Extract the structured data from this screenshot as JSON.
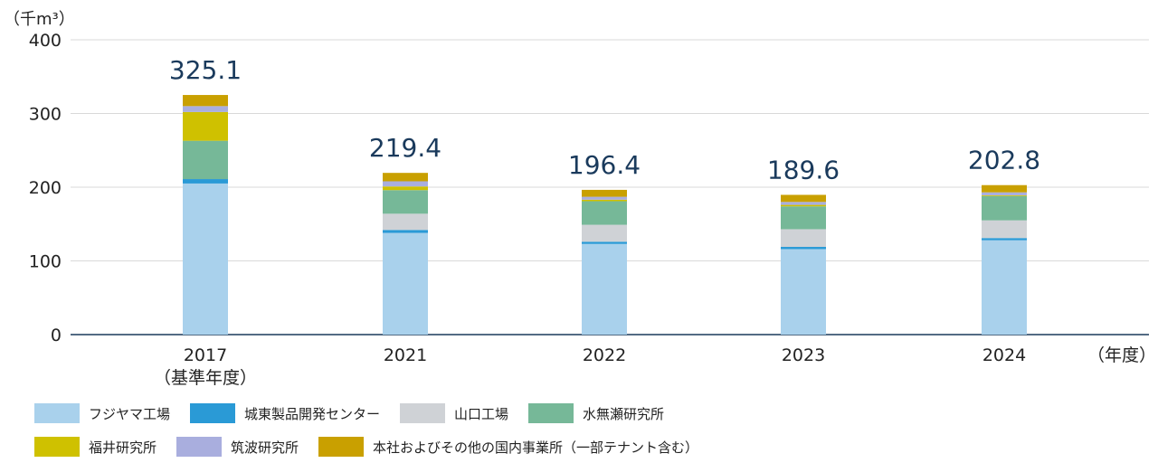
{
  "chart_data": {
    "type": "bar",
    "stacked": true,
    "y_unit_label": "（千m³）",
    "x_unit_label": "（年度）",
    "ylim": [
      0,
      400
    ],
    "yticks": [
      0,
      100,
      200,
      300,
      400
    ],
    "grid": true,
    "categories": [
      {
        "year": "2017",
        "sub": "（基準年度）"
      },
      {
        "year": "2021",
        "sub": ""
      },
      {
        "year": "2022",
        "sub": ""
      },
      {
        "year": "2023",
        "sub": ""
      },
      {
        "year": "2024",
        "sub": ""
      }
    ],
    "totals": [
      "325.1",
      "219.4",
      "196.4",
      "189.6",
      "202.8"
    ],
    "series": [
      {
        "name": "フジヤマ工場",
        "color": "#a9d1ec",
        "values": [
          205,
          138,
          123,
          116,
          128
        ]
      },
      {
        "name": "城東製品開発センター",
        "color": "#2a9ad6",
        "values": [
          6,
          4,
          3,
          3,
          3
        ]
      },
      {
        "name": "山口工場",
        "color": "#cfd2d6",
        "values": [
          0,
          22,
          23,
          24,
          24
        ]
      },
      {
        "name": "水無瀬研究所",
        "color": "#76b898",
        "values": [
          52,
          32,
          32,
          31,
          33
        ]
      },
      {
        "name": "福井研究所",
        "color": "#cfc100",
        "values": [
          39,
          5,
          2,
          2,
          1
        ]
      },
      {
        "name": "筑波研究所",
        "color": "#a9aede",
        "values": [
          8,
          7,
          4,
          4,
          4
        ]
      },
      {
        "name": "本社およびその他の国内事業所（一部テナント含む）",
        "color": "#c9a000",
        "values": [
          15.1,
          11.4,
          9.4,
          9.6,
          9.8
        ]
      }
    ],
    "legend_position": "bottom"
  }
}
